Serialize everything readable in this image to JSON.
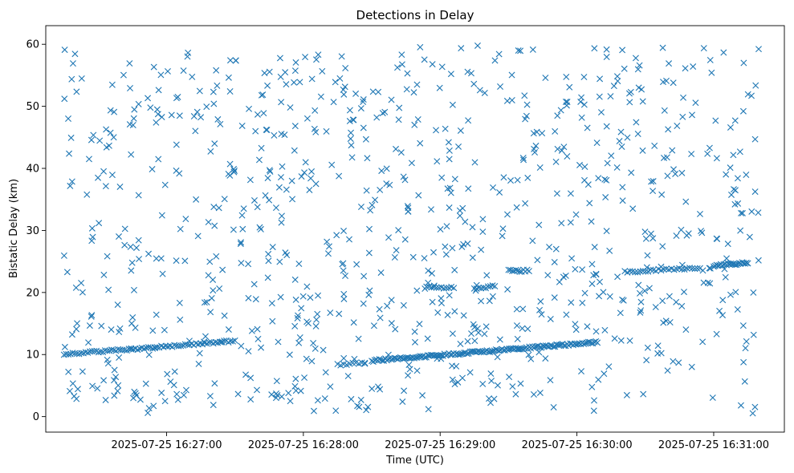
{
  "chart_data": {
    "type": "scatter",
    "title": "Detections in Delay",
    "xlabel": "Time (UTC)",
    "ylabel": "Bistatic Delay (km)",
    "x_ticks": [
      {
        "label": "2025-07-25 16:27:00",
        "t": "16:27:00"
      },
      {
        "label": "2025-07-25 16:28:00",
        "t": "16:28:00"
      },
      {
        "label": "2025-07-25 16:29:00",
        "t": "16:29:00"
      },
      {
        "label": "2025-07-25 16:30:00",
        "t": "16:30:00"
      },
      {
        "label": "2025-07-25 16:31:00",
        "t": "16:31:00"
      }
    ],
    "xlim": [
      "16:26:07",
      "16:31:31"
    ],
    "y_ticks": [
      0,
      10,
      20,
      30,
      40,
      50,
      60
    ],
    "ylim": [
      -2.5,
      63
    ],
    "marker": "x",
    "color": "#1f77b4",
    "grid": false,
    "tracks": [
      {
        "t_start": "16:26:15",
        "t_end": "16:27:30",
        "y_start": 10.0,
        "y_end": 12.2,
        "count": 80
      },
      {
        "t_start": "16:28:15",
        "t_end": "16:28:27",
        "y_start": 8.4,
        "y_end": 8.6,
        "count": 10
      },
      {
        "t_start": "16:28:30",
        "t_end": "16:30:09",
        "y_start": 9.0,
        "y_end": 12.0,
        "count": 150
      },
      {
        "t_start": "16:28:54",
        "t_end": "16:29:06",
        "y_start": 20.8,
        "y_end": 20.8,
        "count": 12
      },
      {
        "t_start": "16:29:15",
        "t_end": "16:29:24",
        "y_start": 20.6,
        "y_end": 21.0,
        "count": 10
      },
      {
        "t_start": "16:29:30",
        "t_end": "16:29:39",
        "y_start": 23.5,
        "y_end": 23.5,
        "count": 12
      },
      {
        "t_start": "16:30:21",
        "t_end": "16:30:54",
        "y_start": 23.3,
        "y_end": 24.0,
        "count": 30
      },
      {
        "t_start": "16:31:00",
        "t_end": "16:31:15",
        "y_start": 24.3,
        "y_end": 24.8,
        "count": 25
      }
    ],
    "noise": {
      "t_start": "16:26:15",
      "t_end": "16:31:20",
      "y_min": 0.5,
      "y_max": 59.8,
      "count": 900
    }
  }
}
